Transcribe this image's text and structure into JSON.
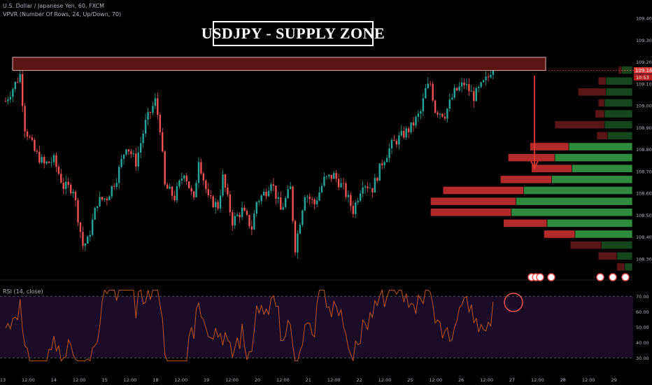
{
  "legend": {
    "symbol_line": "U.S. Dollar / Japanese Yen, 60, FXCM",
    "indicator_line": "VPVR (Number Of Rows, 24, Up/Down, 70)"
  },
  "title": "USDJPY - SUPPLY ZONE",
  "rsi_label": "RSI (14, close)",
  "price_badge": "109.161",
  "time_badge": "10:53",
  "colors": {
    "background": "#000000",
    "candle_up": "#26a69a",
    "candle_down": "#ef5350",
    "zone_fill": "#5a1414",
    "zone_border": "#e0b0b0",
    "arrow": "#e53935",
    "rsi_line": "#c0561d",
    "rsi_band": "#1a0b26",
    "vp_up": "#2e8b3d",
    "vp_down": "#b22a2a",
    "badge": "#e53935"
  },
  "chart_data": [
    {
      "type": "candlestick",
      "title": "U.S. Dollar / Japanese Yen, 60, FXCM",
      "xlabel": "",
      "ylabel": "",
      "x_ticks": [
        "13",
        "12:00",
        "14",
        "12:00",
        "15",
        "12:00",
        "18",
        "12:00",
        "19",
        "12:00",
        "20",
        "12:00",
        "21",
        "12:00",
        "22",
        "12:00",
        "25",
        "12:00",
        "26",
        "12:00",
        "27",
        "12:00",
        "28",
        "12:00",
        "29"
      ],
      "y_ticks": [
        108.3,
        108.4,
        108.5,
        108.6,
        108.7,
        108.8,
        108.9,
        109.0,
        109.1,
        109.2,
        109.3,
        109.4
      ],
      "y_tick_labels": [
        "108.300",
        "108.400",
        "108.500",
        "108.600",
        "108.700",
        "108.800",
        "108.900",
        "109.000",
        "109.100",
        "109.200",
        "109.300",
        "109.400"
      ],
      "ylim": [
        108.25,
        109.45
      ],
      "last_price": 109.161,
      "supply_zone": {
        "low": 109.16,
        "high": 109.22,
        "label": ""
      },
      "waypoints": [
        [
          0,
          109.02
        ],
        [
          4,
          109.1
        ],
        [
          6,
          109.14
        ],
        [
          8,
          108.9
        ],
        [
          12,
          108.79
        ],
        [
          16,
          108.73
        ],
        [
          20,
          108.75
        ],
        [
          24,
          108.63
        ],
        [
          28,
          108.62
        ],
        [
          32,
          108.36
        ],
        [
          34,
          108.38
        ],
        [
          38,
          108.56
        ],
        [
          42,
          108.58
        ],
        [
          46,
          108.67
        ],
        [
          50,
          108.82
        ],
        [
          54,
          108.74
        ],
        [
          58,
          108.92
        ],
        [
          62,
          109.02
        ],
        [
          64,
          108.9
        ],
        [
          66,
          108.63
        ],
        [
          70,
          108.58
        ],
        [
          74,
          108.7
        ],
        [
          78,
          108.56
        ],
        [
          80,
          108.76
        ],
        [
          84,
          108.57
        ],
        [
          88,
          108.54
        ],
        [
          90,
          108.67
        ],
        [
          94,
          108.47
        ],
        [
          98,
          108.52
        ],
        [
          102,
          108.44
        ],
        [
          104,
          108.56
        ],
        [
          108,
          108.61
        ],
        [
          110,
          108.66
        ],
        [
          114,
          108.52
        ],
        [
          118,
          108.62
        ],
        [
          120,
          108.35
        ],
        [
          124,
          108.6
        ],
        [
          128,
          108.55
        ],
        [
          132,
          108.66
        ],
        [
          136,
          108.68
        ],
        [
          140,
          108.62
        ],
        [
          144,
          108.52
        ],
        [
          148,
          108.65
        ],
        [
          152,
          108.62
        ],
        [
          156,
          108.74
        ],
        [
          160,
          108.82
        ],
        [
          164,
          108.86
        ],
        [
          168,
          108.9
        ],
        [
          172,
          108.97
        ],
        [
          174,
          109.07
        ],
        [
          176,
          109.1
        ],
        [
          178,
          108.98
        ],
        [
          182,
          108.96
        ],
        [
          186,
          109.06
        ],
        [
          190,
          109.1
        ],
        [
          194,
          109.04
        ],
        [
          198,
          109.1
        ],
        [
          200,
          109.13
        ],
        [
          202,
          109.19
        ]
      ],
      "volume_profile": {
        "rows": [
          {
            "price": 109.16,
            "up": 0.07,
            "down": 0.02
          },
          {
            "price": 109.11,
            "up": 0.17,
            "down": 0.05
          },
          {
            "price": 109.06,
            "up": 0.17,
            "down": 0.18
          },
          {
            "price": 109.01,
            "up": 0.18,
            "down": 0.04
          },
          {
            "price": 108.96,
            "up": 0.18,
            "down": 0.06
          },
          {
            "price": 108.91,
            "up": 0.18,
            "down": 0.32
          },
          {
            "price": 108.86,
            "up": 0.16,
            "down": 0.07
          },
          {
            "price": 108.81,
            "up": 0.41,
            "down": 0.25
          },
          {
            "price": 108.76,
            "up": 0.5,
            "down": 0.3
          },
          {
            "price": 108.71,
            "up": 0.39,
            "down": 0.26
          },
          {
            "price": 108.66,
            "up": 0.52,
            "down": 0.33
          },
          {
            "price": 108.61,
            "up": 0.7,
            "down": 0.52
          },
          {
            "price": 108.56,
            "up": 0.75,
            "down": 0.55
          },
          {
            "price": 108.51,
            "up": 0.78,
            "down": 0.52
          },
          {
            "price": 108.46,
            "up": 0.55,
            "down": 0.28
          },
          {
            "price": 108.41,
            "up": 0.37,
            "down": 0.2
          },
          {
            "price": 108.36,
            "up": 0.2,
            "down": 0.2
          },
          {
            "price": 108.31,
            "up": 0.1,
            "down": 0.12
          },
          {
            "price": 108.26,
            "up": 0.05,
            "down": 0.05
          }
        ]
      }
    },
    {
      "type": "line",
      "title": "RSI (14, close)",
      "xlabel": "",
      "ylabel": "",
      "y_ticks": [
        30,
        40,
        50,
        60,
        70
      ],
      "y_tick_labels": [
        "30.00",
        "40.00",
        "50.00",
        "60.00",
        "70.00"
      ],
      "ylim": [
        26,
        76
      ],
      "band": [
        30,
        70
      ],
      "grid": false
    }
  ]
}
